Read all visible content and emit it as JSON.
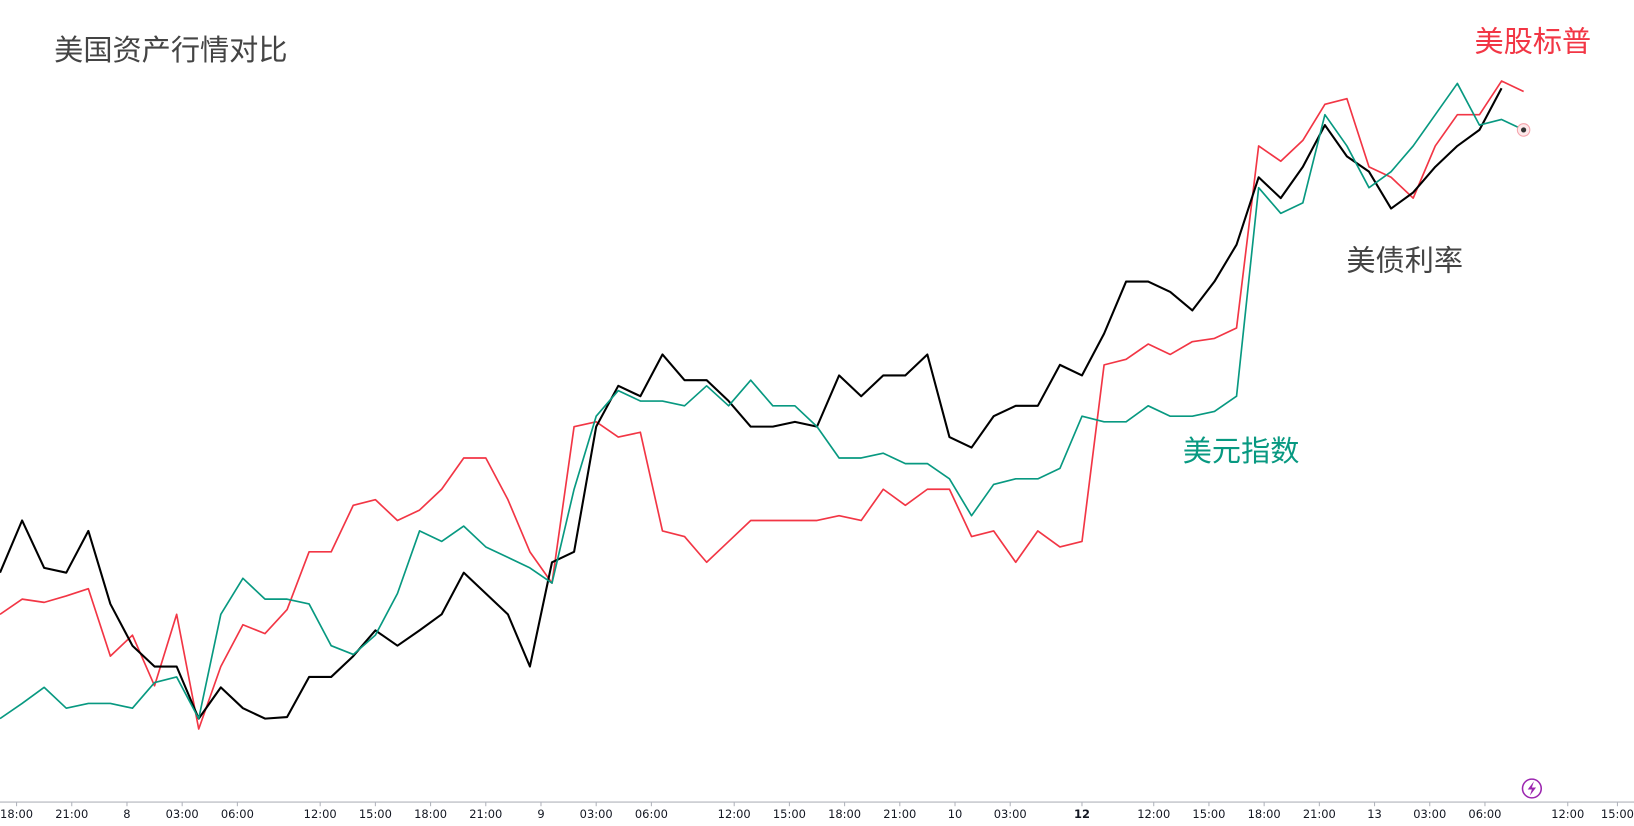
{
  "chart_data": {
    "type": "line",
    "title": "美国资产行情对比",
    "x": [
      0,
      4,
      8,
      12,
      16,
      20,
      24,
      28,
      32,
      36,
      40,
      44,
      48,
      52,
      56,
      60,
      64,
      68,
      72,
      76,
      80,
      84,
      88,
      92,
      96,
      100,
      104,
      108,
      112,
      116,
      120,
      124,
      128,
      132,
      136,
      140,
      144,
      148,
      152,
      156,
      160,
      164,
      168,
      172,
      176,
      180,
      184,
      188,
      192,
      196,
      200,
      204,
      208,
      212,
      216,
      220,
      224,
      228,
      232,
      236,
      240,
      244,
      248,
      252,
      256,
      260,
      264,
      268,
      272,
      276
    ],
    "xlim": [
      0,
      296
    ],
    "xticks": [
      {
        "value": 3,
        "label": "18:00"
      },
      {
        "value": 13,
        "label": "21:00"
      },
      {
        "value": 23,
        "label": "8"
      },
      {
        "value": 33,
        "label": "03:00"
      },
      {
        "value": 43,
        "label": "06:00"
      },
      {
        "value": 58,
        "label": "12:00"
      },
      {
        "value": 68,
        "label": "15:00"
      },
      {
        "value": 78,
        "label": "18:00"
      },
      {
        "value": 88,
        "label": "21:00"
      },
      {
        "value": 98,
        "label": "9"
      },
      {
        "value": 108,
        "label": "03:00"
      },
      {
        "value": 118,
        "label": "06:00"
      },
      {
        "value": 133,
        "label": "12:00"
      },
      {
        "value": 143,
        "label": "15:00"
      },
      {
        "value": 153,
        "label": "18:00"
      },
      {
        "value": 163,
        "label": "21:00"
      },
      {
        "value": 173,
        "label": "10"
      },
      {
        "value": 183,
        "label": "03:00"
      },
      {
        "value": 196,
        "label": "12"
      },
      {
        "value": 209,
        "label": "12:00"
      },
      {
        "value": 219,
        "label": "15:00"
      },
      {
        "value": 229,
        "label": "18:00"
      },
      {
        "value": 239,
        "label": "21:00"
      },
      {
        "value": 249,
        "label": "13"
      },
      {
        "value": 259,
        "label": "03:00"
      },
      {
        "value": 269,
        "label": "06:00"
      },
      {
        "value": 284,
        "label": "12:00"
      },
      {
        "value": 293,
        "label": "15:00"
      }
    ],
    "ylim": [
      0,
      100
    ],
    "series": [
      {
        "name": "美股标普",
        "color": "#f23645",
        "values": [
          23.4,
          25.3,
          24.9,
          25.7,
          26.6,
          18.2,
          20.8,
          14.5,
          23.4,
          9.1,
          16.9,
          22.1,
          21.0,
          24.0,
          31.2,
          31.2,
          37.0,
          37.7,
          35.1,
          36.4,
          39.0,
          42.9,
          42.9,
          37.7,
          31.2,
          27.3,
          46.8,
          47.4,
          45.5,
          46.1,
          33.8,
          33.1,
          29.9,
          32.5,
          35.1,
          35.1,
          35.1,
          35.1,
          35.7,
          35.1,
          39.0,
          37.0,
          39.0,
          39.0,
          33.1,
          33.8,
          29.9,
          33.8,
          31.8,
          32.5,
          54.5,
          55.2,
          57.1,
          55.8,
          57.4,
          57.8,
          59.1,
          81.8,
          79.9,
          82.5,
          87.0,
          87.7,
          79.2,
          77.9,
          75.3,
          81.8,
          85.7,
          85.7,
          89.9,
          88.6
        ]
      },
      {
        "name": "美债利率",
        "color": "#000000",
        "values": [
          28.6,
          35.1,
          29.2,
          28.6,
          33.8,
          24.7,
          19.5,
          16.9,
          16.9,
          10.4,
          14.3,
          11.7,
          10.4,
          10.6,
          15.6,
          15.6,
          18.2,
          21.4,
          19.5,
          21.4,
          23.4,
          28.6,
          26.0,
          23.4,
          16.9,
          29.9,
          31.2,
          46.8,
          51.9,
          50.6,
          55.8,
          52.6,
          52.6,
          50.0,
          46.8,
          46.8,
          47.4,
          46.8,
          53.2,
          50.6,
          53.2,
          53.2,
          55.8,
          45.5,
          44.2,
          48.1,
          49.4,
          49.4,
          54.5,
          53.2,
          58.4,
          64.9,
          64.9,
          63.6,
          61.3,
          64.9,
          69.5,
          77.9,
          75.3,
          79.2,
          84.4,
          80.5,
          78.6,
          74.0,
          76.0,
          79.2,
          81.8,
          83.8,
          89.0,
          null
        ]
      },
      {
        "name": "美元指数",
        "color": "#089981",
        "values": [
          10.4,
          12.3,
          14.3,
          11.7,
          12.3,
          12.3,
          11.7,
          14.9,
          15.6,
          10.4,
          23.4,
          27.9,
          25.3,
          25.3,
          24.7,
          19.5,
          18.4,
          20.8,
          26.0,
          33.8,
          32.5,
          34.4,
          31.8,
          30.5,
          29.2,
          27.3,
          39.0,
          48.1,
          51.3,
          50.0,
          50.0,
          49.4,
          51.9,
          49.4,
          52.6,
          49.4,
          49.4,
          46.8,
          42.9,
          42.9,
          43.5,
          42.2,
          42.2,
          40.3,
          35.7,
          39.6,
          40.3,
          40.3,
          41.6,
          48.1,
          47.4,
          47.4,
          49.4,
          48.1,
          48.1,
          48.7,
          50.6,
          76.6,
          73.4,
          74.7,
          85.7,
          81.8,
          76.6,
          78.6,
          81.8,
          85.7,
          89.6,
          84.4,
          85.1,
          83.8
        ]
      }
    ]
  }
}
